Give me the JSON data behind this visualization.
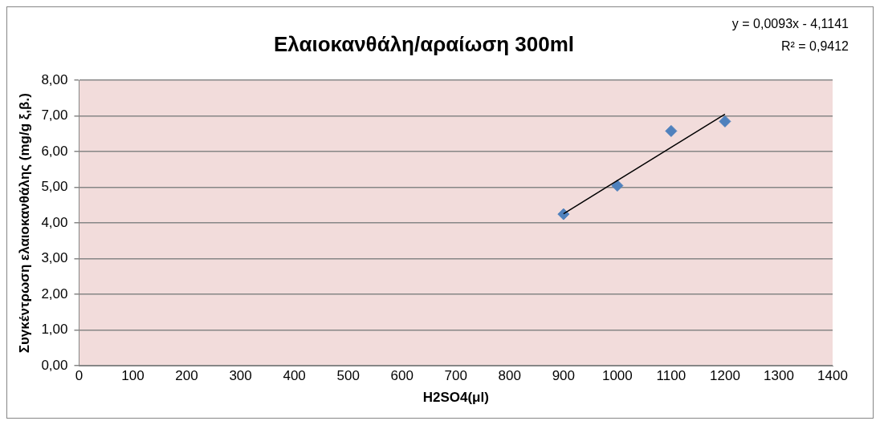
{
  "chart_data": {
    "type": "scatter",
    "title": "Ελαιοκανθάλη/αραίωση 300ml",
    "xlabel": "H2SO4(μl)",
    "ylabel": "Συγκέντρωση ελαιοκανθάλης (mg/g ξ,β.)",
    "annotations": [
      "y = 0,0093x - 4,1141",
      "R² = 0,9412"
    ],
    "x": [
      900,
      1000,
      1100,
      1200
    ],
    "series": [
      {
        "type": "scatter",
        "color": "#4f81bd",
        "values": [
          4.25,
          5.05,
          6.58,
          6.85
        ]
      },
      {
        "type": "line",
        "color": "#000000",
        "x": [
          900,
          1200
        ],
        "values": [
          4.26,
          7.05
        ],
        "marker": "none"
      }
    ],
    "xlim": [
      0,
      1400
    ],
    "xticks": [
      0,
      100,
      200,
      300,
      400,
      500,
      600,
      700,
      800,
      900,
      1000,
      1100,
      1200,
      1300,
      1400
    ],
    "ylim": [
      0,
      8
    ],
    "yticks": [
      {
        "value": 0,
        "label": "0,00"
      },
      {
        "value": 1,
        "label": "1,00"
      },
      {
        "value": 2,
        "label": "2,00"
      },
      {
        "value": 3,
        "label": "3,00"
      },
      {
        "value": 4,
        "label": "4,00"
      },
      {
        "value": 5,
        "label": "5,00"
      },
      {
        "value": 6,
        "label": "6,00"
      },
      {
        "value": 7,
        "label": "7,00"
      },
      {
        "value": 8,
        "label": "8,00"
      }
    ],
    "grid": "y",
    "legend": false,
    "marker": "diamond"
  }
}
